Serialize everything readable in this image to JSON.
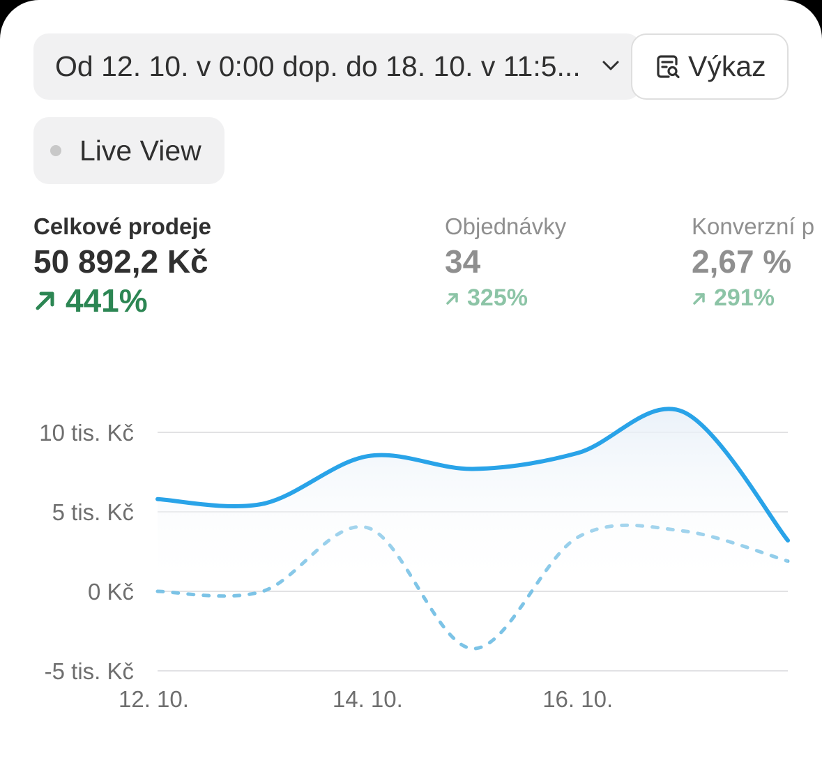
{
  "date_range": {
    "label": "Od 12. 10. v 0:00 dop. do 18. 10. v 11:5..."
  },
  "report_button": {
    "label": "Výkaz"
  },
  "live_view": {
    "label": "Live View"
  },
  "metrics": [
    {
      "label": "Celkové prodeje",
      "value": "50 892,2 Kč",
      "delta": "441%"
    },
    {
      "label": "Objednávky",
      "value": "34",
      "delta": "325%"
    },
    {
      "label": "Konverzní p",
      "value": "2,67 %",
      "delta": "291%"
    }
  ],
  "colors": {
    "current": "#29a3e8",
    "previous": "#7cc3e6",
    "positive": "#2c8653"
  },
  "chart_data": {
    "type": "line",
    "ylim": [
      -5000,
      10000
    ],
    "y_ticks": [
      {
        "value": 10000,
        "label": "10 tis. Kč"
      },
      {
        "value": 5000,
        "label": "5 tis. Kč"
      },
      {
        "value": 0,
        "label": "0 Kč"
      },
      {
        "value": -5000,
        "label": "-5 tis. Kč"
      }
    ],
    "x_ticks": [
      {
        "value": 0,
        "label": "12. 10."
      },
      {
        "value": 2,
        "label": "14. 10."
      },
      {
        "value": 4,
        "label": "16. 10."
      }
    ],
    "xlim": [
      0,
      6
    ],
    "grid": true,
    "series": [
      {
        "style": "solid",
        "area": true,
        "x": [
          0,
          1,
          2,
          3,
          4,
          5,
          6
        ],
        "values": [
          5800,
          5500,
          8500,
          7700,
          8700,
          11300,
          3200
        ]
      },
      {
        "style": "dashed",
        "x": [
          0,
          1,
          2,
          3,
          4,
          5,
          6
        ],
        "values": [
          0,
          0,
          4000,
          -3600,
          3400,
          3800,
          1900
        ]
      }
    ]
  }
}
